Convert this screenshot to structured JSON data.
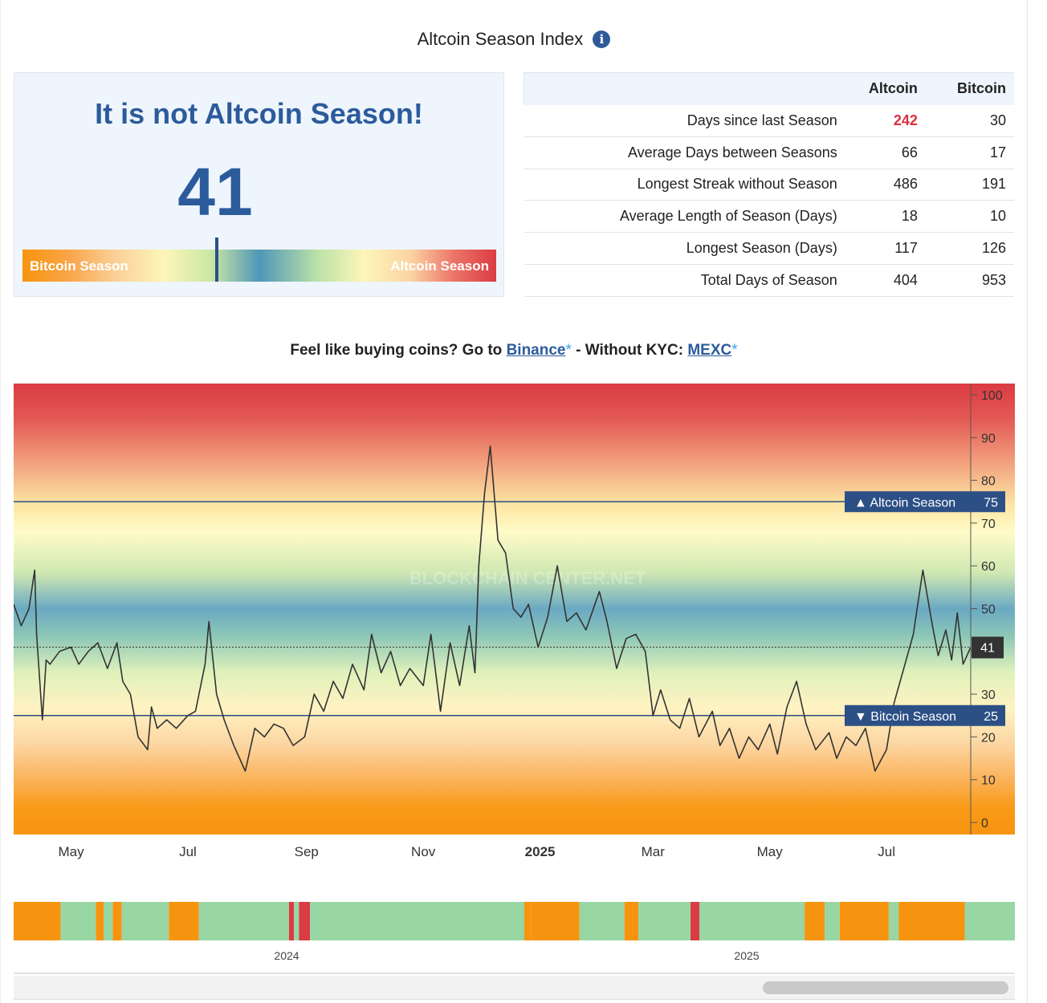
{
  "page": {
    "title": "Altcoin Season Index",
    "info_icon": "info-icon"
  },
  "status": {
    "headline": "It is not Altcoin Season!",
    "index_value": "41",
    "gauge_value": 41,
    "gauge_left_label": "Bitcoin Season",
    "gauge_right_label": "Altcoin Season"
  },
  "stats": {
    "columns": [
      "Altcoin",
      "Bitcoin"
    ],
    "rows": [
      {
        "metric": "Days since last Season",
        "altcoin": "242",
        "bitcoin": "30"
      },
      {
        "metric": "Average Days between Seasons",
        "altcoin": "66",
        "bitcoin": "17"
      },
      {
        "metric": "Longest Streak without Season",
        "altcoin": "486",
        "bitcoin": "191"
      },
      {
        "metric": "Average Length of Season (Days)",
        "altcoin": "18",
        "bitcoin": "10"
      },
      {
        "metric": "Longest Season (Days)",
        "altcoin": "117",
        "bitcoin": "126"
      },
      {
        "metric": "Total Days of Season",
        "altcoin": "404",
        "bitcoin": "953"
      }
    ],
    "highlight_color": "#d9303e"
  },
  "promo": {
    "prefix": "Feel like buying coins? Go to",
    "link1": "Binance",
    "star": "*",
    "middle": "- Without KYC:",
    "link2": "MEXC"
  },
  "colors": {
    "brand": "#2c5b9c",
    "bitcoin_season": "#f7940f",
    "altcoin_season": "#db3b43",
    "neutral": "#98d6a4",
    "line": "#333333"
  },
  "chart_data": {
    "type": "line",
    "watermark": "BLOCKCHAIN CENTER.NET",
    "ylim": [
      0,
      100
    ],
    "yticks": [
      0,
      10,
      20,
      30,
      40,
      50,
      60,
      70,
      80,
      90,
      100
    ],
    "x_range": [
      "2024-04-01",
      "2025-08-14"
    ],
    "x_ticks": [
      {
        "label": "May",
        "date": "2024-05-01",
        "bold": false
      },
      {
        "label": "Jul",
        "date": "2024-07-01",
        "bold": false
      },
      {
        "label": "Sep",
        "date": "2024-09-01",
        "bold": false
      },
      {
        "label": "Nov",
        "date": "2024-11-01",
        "bold": false
      },
      {
        "label": "2025",
        "date": "2025-01-01",
        "bold": true
      },
      {
        "label": "Mar",
        "date": "2025-03-01",
        "bold": false
      },
      {
        "label": "May",
        "date": "2025-05-01",
        "bold": false
      },
      {
        "label": "Jul",
        "date": "2025-07-01",
        "bold": false
      }
    ],
    "thresholds": [
      {
        "label": "Altcoin Season",
        "value": 75,
        "arrow": "▲"
      },
      {
        "label": "Bitcoin Season",
        "value": 25,
        "arrow": "▼"
      }
    ],
    "current": {
      "value": 41,
      "label": "41"
    },
    "series": [
      {
        "x": [
          "2024-04-01",
          "2024-04-05",
          "2024-04-09",
          "2024-04-12",
          "2024-04-13",
          "2024-04-16",
          "2024-04-18",
          "2024-04-20",
          "2024-04-25",
          "2024-05-01",
          "2024-05-05",
          "2024-05-10",
          "2024-05-15",
          "2024-05-20",
          "2024-05-25",
          "2024-05-28",
          "2024-06-01",
          "2024-06-05",
          "2024-06-10",
          "2024-06-12",
          "2024-06-15",
          "2024-06-20",
          "2024-06-25",
          "2024-07-01",
          "2024-07-05",
          "2024-07-10",
          "2024-07-12",
          "2024-07-16",
          "2024-07-20",
          "2024-07-25",
          "2024-07-31",
          "2024-08-05",
          "2024-08-10",
          "2024-08-15",
          "2024-08-20",
          "2024-08-25",
          "2024-08-31",
          "2024-09-05",
          "2024-09-10",
          "2024-09-15",
          "2024-09-20",
          "2024-09-25",
          "2024-10-01",
          "2024-10-05",
          "2024-10-10",
          "2024-10-15",
          "2024-10-20",
          "2024-10-25",
          "2024-11-01",
          "2024-11-05",
          "2024-11-10",
          "2024-11-15",
          "2024-11-20",
          "2024-11-25",
          "2024-11-28",
          "2024-11-30",
          "2024-12-03",
          "2024-12-06",
          "2024-12-10",
          "2024-12-14",
          "2024-12-18",
          "2024-12-22",
          "2024-12-26",
          "2024-12-31",
          "2025-01-05",
          "2025-01-10",
          "2025-01-15",
          "2025-01-20",
          "2025-01-25",
          "2025-02-01",
          "2025-02-05",
          "2025-02-10",
          "2025-02-15",
          "2025-02-20",
          "2025-02-25",
          "2025-03-01",
          "2025-03-05",
          "2025-03-10",
          "2025-03-15",
          "2025-03-20",
          "2025-03-25",
          "2025-04-01",
          "2025-04-05",
          "2025-04-10",
          "2025-04-15",
          "2025-04-20",
          "2025-04-25",
          "2025-05-01",
          "2025-05-05",
          "2025-05-10",
          "2025-05-15",
          "2025-05-20",
          "2025-05-25",
          "2025-06-01",
          "2025-06-05",
          "2025-06-10",
          "2025-06-15",
          "2025-06-20",
          "2025-06-25",
          "2025-07-01",
          "2025-07-05",
          "2025-07-10",
          "2025-07-15",
          "2025-07-20",
          "2025-07-25",
          "2025-07-28",
          "2025-08-01",
          "2025-08-04",
          "2025-08-07",
          "2025-08-10",
          "2025-08-14"
        ],
        "y": [
          51,
          46,
          50,
          59,
          44,
          24,
          38,
          37,
          40,
          41,
          37,
          40,
          42,
          36,
          42,
          33,
          30,
          20,
          17,
          27,
          22,
          24,
          22,
          25,
          26,
          37,
          47,
          30,
          24,
          18,
          12,
          22,
          20,
          23,
          22,
          18,
          20,
          30,
          26,
          33,
          29,
          37,
          31,
          44,
          35,
          40,
          32,
          36,
          32,
          44,
          26,
          42,
          32,
          46,
          35,
          60,
          77,
          88,
          66,
          63,
          50,
          48,
          51,
          41,
          48,
          60,
          47,
          49,
          45,
          54,
          47,
          36,
          43,
          44,
          40,
          25,
          31,
          24,
          22,
          29,
          20,
          26,
          18,
          22,
          15,
          20,
          17,
          23,
          16,
          27,
          33,
          23,
          17,
          21,
          15,
          20,
          18,
          22,
          12,
          17,
          28,
          36,
          44,
          59,
          46,
          39,
          45,
          38,
          49,
          37,
          41
        ]
      }
    ]
  },
  "navigator": {
    "years": [
      {
        "label": "2024",
        "date": "2024-01-01"
      },
      {
        "label": "2025",
        "date": "2025-01-01"
      }
    ],
    "segments": [
      {
        "end": 0.047,
        "state": "bitcoin"
      },
      {
        "end": 0.082,
        "state": "neutral"
      },
      {
        "end": 0.09,
        "state": "bitcoin"
      },
      {
        "end": 0.099,
        "state": "neutral"
      },
      {
        "end": 0.108,
        "state": "bitcoin"
      },
      {
        "end": 0.155,
        "state": "neutral"
      },
      {
        "end": 0.185,
        "state": "bitcoin"
      },
      {
        "end": 0.275,
        "state": "neutral"
      },
      {
        "end": 0.28,
        "state": "altcoin"
      },
      {
        "end": 0.285,
        "state": "neutral"
      },
      {
        "end": 0.296,
        "state": "altcoin"
      },
      {
        "end": 0.51,
        "state": "neutral"
      },
      {
        "end": 0.517,
        "state": "bitcoin"
      },
      {
        "end": 0.512,
        "state": "neutral"
      },
      {
        "end": 0.565,
        "state": "bitcoin"
      },
      {
        "end": 0.61,
        "state": "neutral"
      },
      {
        "end": 0.624,
        "state": "bitcoin"
      },
      {
        "end": 0.676,
        "state": "neutral"
      },
      {
        "end": 0.685,
        "state": "altcoin"
      },
      {
        "end": 0.79,
        "state": "neutral"
      },
      {
        "end": 0.81,
        "state": "bitcoin"
      },
      {
        "end": 0.825,
        "state": "neutral"
      },
      {
        "end": 0.874,
        "state": "bitcoin"
      },
      {
        "end": 0.884,
        "state": "neutral"
      },
      {
        "end": 0.95,
        "state": "bitcoin"
      },
      {
        "end": 1.0,
        "state": "neutral"
      }
    ]
  }
}
